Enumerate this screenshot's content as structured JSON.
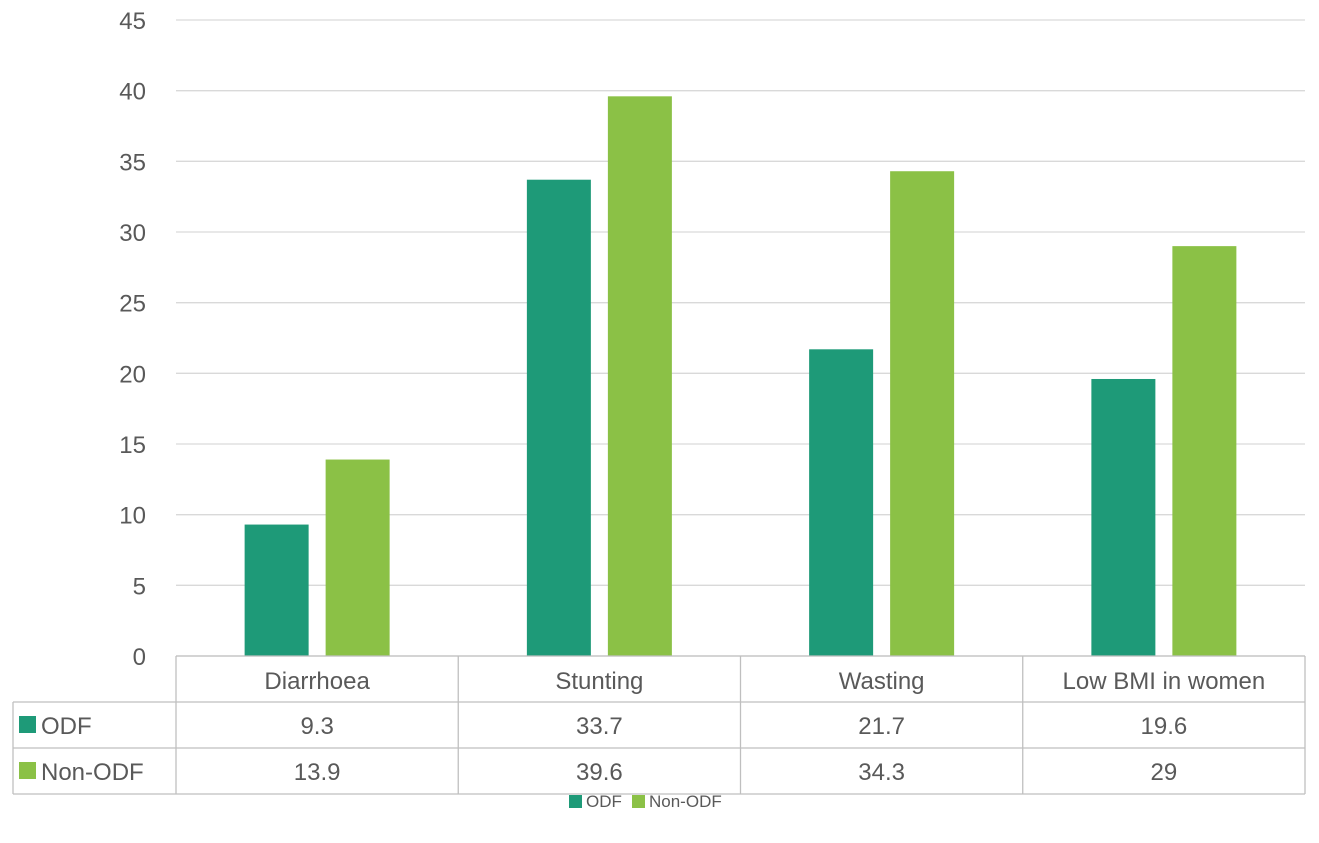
{
  "chart_data": {
    "type": "bar",
    "title": "",
    "categories": [
      "Diarrhoea",
      "Stunting",
      "Wasting",
      "Low BMI in women"
    ],
    "series": [
      {
        "name": "ODF",
        "values": [
          9.3,
          33.7,
          21.7,
          19.6
        ],
        "color": "#1e9a78"
      },
      {
        "name": "Non-ODF",
        "values": [
          13.9,
          39.6,
          34.3,
          29
        ],
        "color": "#8bc146"
      }
    ],
    "ylim": [
      0,
      45
    ],
    "yticks": [
      0,
      5,
      10,
      15,
      20,
      25,
      30,
      35,
      40,
      45
    ],
    "grid": true,
    "data_table": true,
    "legend_position": "bottom"
  },
  "table": {
    "rows": [
      {
        "label": "ODF",
        "values": [
          "9.3",
          "33.7",
          "21.7",
          "19.6"
        ]
      },
      {
        "label": "Non-ODF",
        "values": [
          "13.9",
          "39.6",
          "34.3",
          "29"
        ]
      }
    ]
  },
  "legend": [
    {
      "label": "ODF"
    },
    {
      "label": "Non-ODF"
    }
  ]
}
